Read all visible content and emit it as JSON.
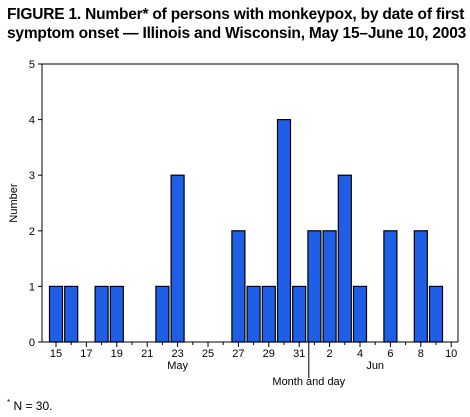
{
  "figure": {
    "title_line1": "FIGURE 1. Number* of persons with monkeypox, by date of first",
    "title_line2": "symptom onset — Illinois and Wisconsin, May 15–June 10, 2003",
    "footnote_marker": "*",
    "footnote_text": " N = 30."
  },
  "colors": {
    "bar_fill": "#1f5fe8",
    "bar_stroke": "#000000"
  },
  "chart_data": {
    "type": "bar",
    "title": "Number* of persons with monkeypox, by date of first symptom onset — Illinois and Wisconsin, May 15–June 10, 2003",
    "ylabel": "Number",
    "xlabel": "Month and day",
    "ylim": [
      0,
      5
    ],
    "yticks": [
      0,
      1,
      2,
      3,
      4,
      5
    ],
    "x_tick_labels": [
      "15",
      "17",
      "19",
      "21",
      "23",
      "25",
      "27",
      "29",
      "31",
      "2",
      "4",
      "6",
      "8",
      "10"
    ],
    "month_labels": [
      "May",
      "Jun"
    ],
    "categories": [
      "May 15",
      "May 16",
      "May 17",
      "May 18",
      "May 19",
      "May 20",
      "May 21",
      "May 22",
      "May 23",
      "May 24",
      "May 25",
      "May 26",
      "May 27",
      "May 28",
      "May 29",
      "May 30",
      "May 31",
      "Jun 1",
      "Jun 2",
      "Jun 3",
      "Jun 4",
      "Jun 5",
      "Jun 6",
      "Jun 7",
      "Jun 8",
      "Jun 9",
      "Jun 10"
    ],
    "values": [
      1,
      1,
      0,
      1,
      1,
      0,
      0,
      1,
      3,
      0,
      0,
      0,
      2,
      1,
      1,
      4,
      1,
      2,
      2,
      3,
      1,
      0,
      2,
      0,
      2,
      1,
      0
    ],
    "grid": false,
    "legend": "none"
  }
}
